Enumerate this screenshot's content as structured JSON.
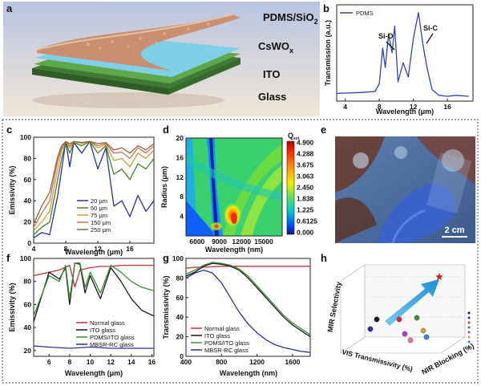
{
  "figure_labels": [
    "a",
    "b",
    "c",
    "d",
    "e",
    "f",
    "g",
    "h"
  ],
  "panel_a": {
    "layers": [
      {
        "label": "PDMS/SiO",
        "subscript": "2",
        "color": "#c89070"
      },
      {
        "label": "CsWO",
        "subscript": "x",
        "color": "#7fd0e6"
      },
      {
        "label": "ITO",
        "subscript": "",
        "color": "#5fa84a"
      },
      {
        "label": "Glass",
        "subscript": "",
        "color": "#3f7a35"
      }
    ]
  },
  "panel_e": {
    "scale_bar": "2 cm"
  },
  "chart_data": [
    {
      "panel": "b",
      "type": "line",
      "xlabel": "Wavelength (μm)",
      "ylabel": "Transmission (a.u.)",
      "xlim": [
        3,
        19
      ],
      "xticks": [
        4,
        8,
        12,
        16
      ],
      "legend": "top-left",
      "series": [
        {
          "name": "PDMS",
          "color": "#3340b8",
          "x": [
            3,
            6,
            7.5,
            8,
            8.4,
            8.7,
            9.1,
            9.5,
            9.8,
            10.2,
            10.8,
            11.4,
            12,
            12.6,
            13.1,
            13.6,
            14.2,
            15,
            16,
            17,
            18.5
          ],
          "y": [
            0.08,
            0.09,
            0.1,
            0.18,
            0.55,
            0.35,
            0.7,
            0.5,
            0.78,
            0.2,
            0.4,
            0.25,
            0.65,
            0.92,
            0.6,
            0.35,
            0.12,
            0.06,
            0.05,
            0.06,
            0.05
          ]
        }
      ],
      "annotations": [
        {
          "text": "Si-O",
          "x": 9.8,
          "y": 0.78
        },
        {
          "text": "Si-C",
          "x": 12.6,
          "y": 0.92
        }
      ]
    },
    {
      "panel": "c",
      "type": "line",
      "xlabel": "Wavelength (μm)",
      "ylabel": "Emissivity (%)",
      "xlim": [
        4,
        19
      ],
      "ylim": [
        0,
        100
      ],
      "xticks": [
        4,
        8,
        12,
        16
      ],
      "yticks": [
        0,
        20,
        40,
        60,
        80,
        100
      ],
      "legend": "bottom-center",
      "series": [
        {
          "name": "20 μm",
          "color": "#2b2f9e",
          "x": [
            4,
            5,
            6,
            7,
            7.5,
            8,
            8.5,
            9,
            10,
            11,
            12,
            13,
            14,
            15,
            16,
            17,
            18,
            19
          ],
          "y": [
            5,
            10,
            8,
            45,
            70,
            96,
            72,
            95,
            85,
            96,
            70,
            90,
            35,
            40,
            25,
            45,
            30,
            40
          ]
        },
        {
          "name": "50 μm",
          "color": "#4d7f2f",
          "x": [
            4,
            5,
            6,
            7,
            7.5,
            8,
            8.5,
            9,
            10,
            11,
            12,
            13,
            14,
            15,
            16,
            17,
            18,
            19
          ],
          "y": [
            8,
            15,
            20,
            60,
            80,
            96,
            85,
            95,
            92,
            96,
            85,
            92,
            65,
            70,
            60,
            75,
            70,
            80
          ]
        },
        {
          "name": "75 μm",
          "color": "#c9a23a",
          "x": [
            4,
            5,
            6,
            7,
            7.5,
            8,
            8.5,
            9,
            10,
            11,
            12,
            13,
            14,
            15,
            16,
            17,
            18,
            19
          ],
          "y": [
            12,
            20,
            30,
            70,
            88,
            96,
            90,
            96,
            94,
            96,
            90,
            93,
            78,
            80,
            72,
            85,
            80,
            88
          ]
        },
        {
          "name": "150 μm",
          "color": "#c8705a",
          "x": [
            4,
            5,
            6,
            7,
            7.5,
            8,
            8.5,
            9,
            10,
            11,
            12,
            13,
            14,
            15,
            16,
            17,
            18,
            19
          ],
          "y": [
            15,
            28,
            40,
            78,
            90,
            96,
            92,
            96,
            95,
            96,
            92,
            94,
            85,
            86,
            80,
            90,
            85,
            92
          ]
        },
        {
          "name": "250 μm",
          "color": "#8a6a3a",
          "x": [
            4,
            5,
            6,
            7,
            7.5,
            8,
            8.5,
            9,
            10,
            11,
            12,
            13,
            14,
            15,
            16,
            17,
            18,
            19
          ],
          "y": [
            18,
            35,
            48,
            82,
            92,
            96,
            94,
            96,
            95,
            96,
            94,
            95,
            88,
            90,
            85,
            92,
            88,
            94
          ]
        }
      ]
    },
    {
      "panel": "d",
      "type": "heatmap",
      "xlabel": "Wavelength (nm)",
      "ylabel": "Radius (μm)",
      "xlim": [
        4500,
        17500
      ],
      "ylim": [
        0,
        20
      ],
      "xticks": [
        6000,
        9000,
        12000,
        15000
      ],
      "yticks": [
        4,
        8,
        12,
        16,
        20
      ],
      "colorbar_title": "Q",
      "colorbar_subscript": "ext",
      "colorbar_ticks": [
        "4.900",
        "4.288",
        "3.675",
        "3.063",
        "2.450",
        "1.838",
        "1.225",
        "0.6125",
        "0.000"
      ]
    },
    {
      "panel": "f",
      "type": "line",
      "xlabel": "Wavelength (μm)",
      "ylabel": "Emissivity (%)",
      "xlim": [
        4.5,
        16.2
      ],
      "ylim": [
        15,
        100
      ],
      "xticks": [
        6,
        8,
        10,
        12,
        14,
        16
      ],
      "yticks": [
        20,
        40,
        60,
        80,
        100
      ],
      "legend": "bottom-right",
      "series": [
        {
          "name": "Normal glass",
          "color": "#c8323a",
          "x": [
            4.5,
            6,
            7,
            8,
            8.5,
            9,
            10,
            11,
            12,
            13,
            14,
            15,
            16.2
          ],
          "y": [
            85,
            88,
            90,
            94,
            75,
            90,
            92,
            93,
            93,
            94,
            94,
            94,
            94
          ]
        },
        {
          "name": "ITO glass",
          "color": "#1a1a1a",
          "x": [
            4.5,
            6,
            7,
            7.6,
            8,
            8.5,
            9,
            9.5,
            10,
            11,
            12,
            13,
            14,
            15,
            16.2
          ],
          "y": [
            45,
            88,
            82,
            92,
            60,
            96,
            95,
            70,
            85,
            65,
            92,
            80,
            65,
            55,
            50
          ]
        },
        {
          "name": "PDMS/ITO glass",
          "color": "#3e8a3a",
          "x": [
            4.5,
            6,
            7,
            7.6,
            8,
            8.5,
            9,
            9.5,
            10,
            11,
            12,
            13,
            14,
            15,
            16.2
          ],
          "y": [
            50,
            85,
            80,
            94,
            65,
            96,
            96,
            75,
            88,
            70,
            94,
            88,
            80,
            75,
            72
          ]
        },
        {
          "name": "MBSR-RC glass",
          "color": "#2b2f9e",
          "x": [
            4.5,
            6,
            8,
            10,
            12,
            14,
            16.2
          ],
          "y": [
            24,
            23,
            22,
            23,
            22,
            22,
            22
          ]
        }
      ]
    },
    {
      "panel": "g",
      "type": "line",
      "xlabel": "Wavelength (nm)",
      "ylabel": "Transmissivity (%)",
      "xlim": [
        400,
        1800
      ],
      "ylim": [
        0,
        100
      ],
      "xticks": [
        400,
        800,
        1200,
        1600
      ],
      "yticks": [
        0,
        20,
        40,
        60,
        80,
        100
      ],
      "legend": "bottom-left",
      "series": [
        {
          "name": "Normal glass",
          "color": "#c8323a",
          "x": [
            400,
            500,
            600,
            800,
            1000,
            1200,
            1400,
            1600,
            1800
          ],
          "y": [
            90,
            91,
            91,
            92,
            92,
            92,
            92,
            92,
            92
          ]
        },
        {
          "name": "ITO glass",
          "color": "#1a1a1a",
          "x": [
            400,
            500,
            600,
            700,
            800,
            900,
            1000,
            1100,
            1200,
            1300,
            1400,
            1500,
            1600,
            1700,
            1800
          ],
          "y": [
            82,
            86,
            92,
            95,
            94,
            92,
            88,
            80,
            70,
            60,
            50,
            40,
            32,
            26,
            20
          ]
        },
        {
          "name": "PDMS/ITO glass",
          "color": "#3e8a3a",
          "x": [
            400,
            500,
            600,
            700,
            800,
            900,
            1000,
            1100,
            1200,
            1300,
            1400,
            1500,
            1600,
            1700,
            1800
          ],
          "y": [
            84,
            88,
            93,
            96,
            95,
            93,
            89,
            82,
            72,
            62,
            52,
            42,
            34,
            28,
            22
          ]
        },
        {
          "name": "MBSR-RC glass",
          "color": "#2b2f9e",
          "x": [
            400,
            500,
            600,
            700,
            800,
            900,
            1000,
            1100,
            1200,
            1300,
            1400,
            1500,
            1600,
            1700,
            1800
          ],
          "y": [
            80,
            85,
            88,
            85,
            75,
            60,
            45,
            33,
            24,
            17,
            12,
            9,
            7,
            5,
            4
          ]
        }
      ]
    },
    {
      "panel": "h",
      "type": "scatter",
      "xlabel": "VIS Transmissivity (%)",
      "ylabel": "MIR Selectivity",
      "zlabel": "NIR Blocking (%)",
      "arrow_color": "#1e90d6",
      "points": [
        {
          "color": "#1a1a1a"
        },
        {
          "color": "#2b2f9e"
        },
        {
          "color": "#c8323a"
        },
        {
          "color": "#3e8a3a"
        },
        {
          "color": "#a040c0"
        },
        {
          "color": "#c8a040"
        },
        {
          "color": "#4080c0"
        },
        {
          "color": "#e070a0"
        }
      ],
      "star_color": "#c0282a"
    }
  ]
}
